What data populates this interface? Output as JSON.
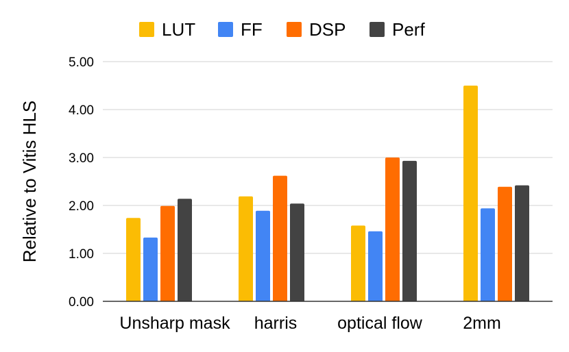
{
  "chart_data": {
    "type": "bar",
    "title": "",
    "xlabel": "",
    "ylabel": "Relative to Vitis HLS",
    "ylim": [
      0,
      5
    ],
    "yticks": [
      "0.00",
      "1.00",
      "2.00",
      "3.00",
      "4.00",
      "5.00"
    ],
    "grid": true,
    "legend_position": "top",
    "categories": [
      "Unsharp mask",
      "harris",
      "optical flow",
      "2mm"
    ],
    "series": [
      {
        "name": "LUT",
        "color": "#fbbc04",
        "values": [
          1.74,
          2.19,
          1.58,
          4.5
        ]
      },
      {
        "name": "FF",
        "color": "#4285f4",
        "values": [
          1.33,
          1.89,
          1.46,
          1.94
        ]
      },
      {
        "name": "DSP",
        "color": "#ff6d01",
        "values": [
          1.99,
          2.62,
          3.0,
          2.39
        ]
      },
      {
        "name": "Perf",
        "color": "#434343",
        "values": [
          2.14,
          2.04,
          2.93,
          2.42
        ]
      }
    ]
  }
}
